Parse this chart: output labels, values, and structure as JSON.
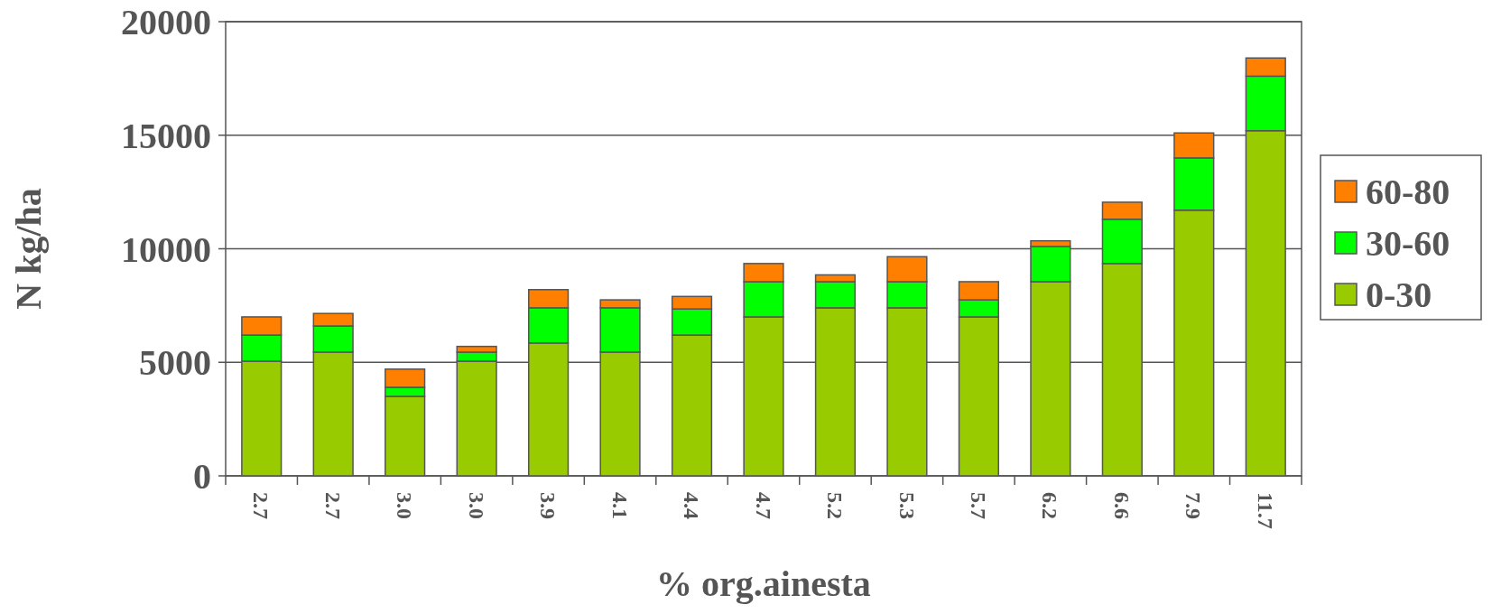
{
  "chart_data": {
    "type": "bar",
    "stacked": true,
    "xlabel": "% org.ainesta",
    "ylabel": "N kg/ha",
    "categories": [
      "2.7",
      "2.7",
      "3.0",
      "3.0",
      "3.9",
      "4.1",
      "4.4",
      "4.7",
      "5.2",
      "5.3",
      "5.7",
      "6.2",
      "6.6",
      "7.9",
      "11.7"
    ],
    "series": [
      {
        "name": "0-30",
        "color": "#99cc00",
        "values": [
          5050,
          5450,
          3500,
          5050,
          5850,
          5450,
          6200,
          7000,
          7400,
          7400,
          7000,
          8550,
          9350,
          11700,
          15200
        ]
      },
      {
        "name": "30-60",
        "color": "#00ff00",
        "values": [
          1150,
          1150,
          400,
          400,
          1550,
          1950,
          1150,
          1550,
          1150,
          1150,
          750,
          1550,
          1950,
          2300,
          2400
        ]
      },
      {
        "name": "60-80",
        "color": "#ff8000",
        "values": [
          800,
          550,
          800,
          250,
          800,
          350,
          550,
          800,
          300,
          1100,
          800,
          250,
          750,
          1100,
          800
        ]
      }
    ],
    "ylim": [
      0,
      20000
    ],
    "yticks": [
      0,
      5000,
      10000,
      15000,
      20000
    ],
    "grid": "y",
    "legend": "right"
  }
}
